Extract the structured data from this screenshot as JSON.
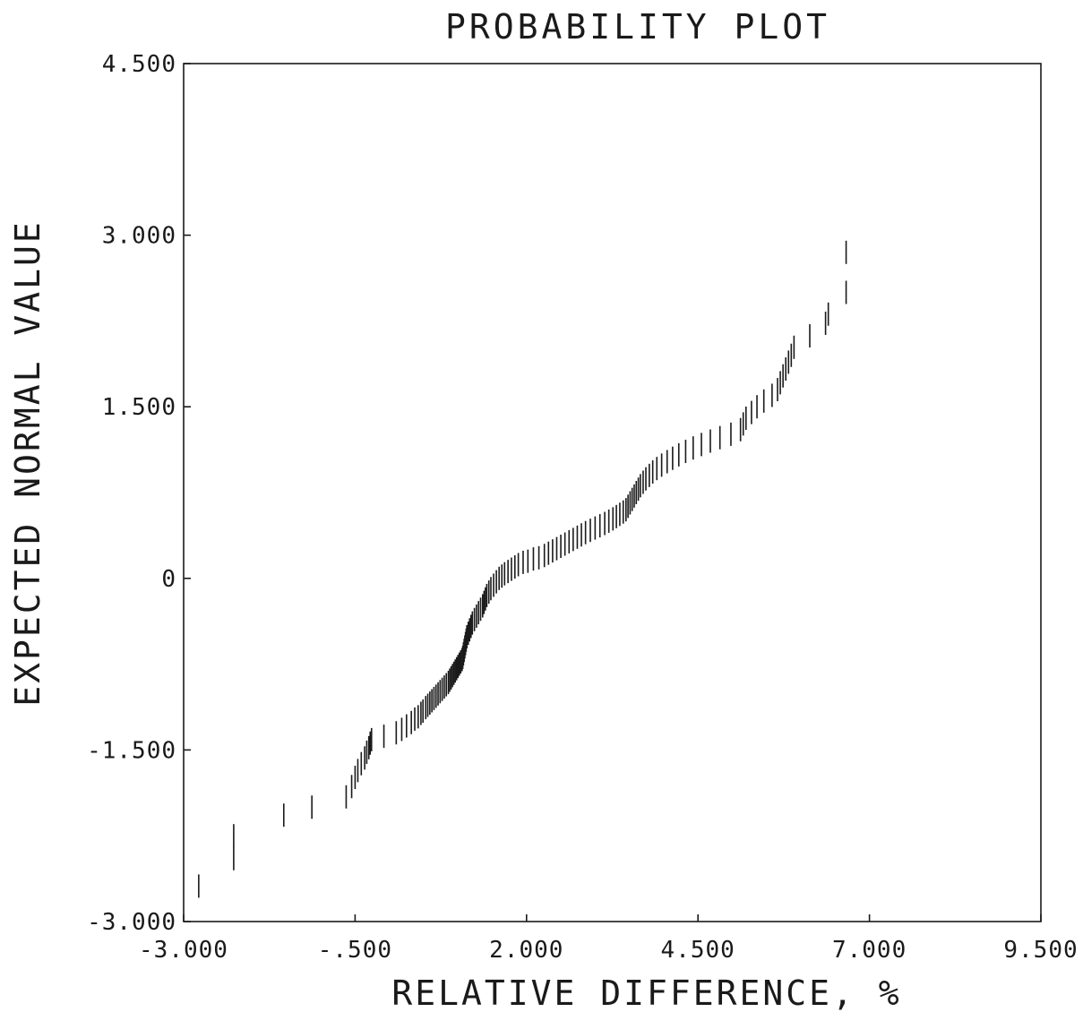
{
  "chart_data": {
    "type": "scatter",
    "title": "PROBABILITY PLOT",
    "xlabel": "RELATIVE DIFFERENCE, %",
    "ylabel": "EXPECTED NORMAL VALUE",
    "xlim": [
      -3.0,
      9.5
    ],
    "ylim": [
      -3.0,
      4.5
    ],
    "x_ticks": [
      -3.0,
      -0.5,
      2.0,
      4.5,
      7.0,
      9.5
    ],
    "x_tick_labels": [
      "-3.000",
      "-.500",
      "2.000",
      "4.500",
      "7.000",
      "9.500"
    ],
    "y_ticks": [
      -3.0,
      -1.5,
      0,
      1.5,
      3.0,
      4.5
    ],
    "y_tick_labels": [
      "-3.000",
      "-1.500",
      "0",
      "1.500",
      "3.000",
      "4.500"
    ],
    "grid": false,
    "legend": "none",
    "marker": "vertical-bar",
    "series": [
      {
        "points": [
          [
            -2.78,
            -2.69
          ],
          [
            -2.27,
            -2.45
          ],
          [
            -2.27,
            -2.25
          ],
          [
            -1.54,
            -2.07
          ],
          [
            -1.13,
            -2.0
          ],
          [
            -0.63,
            -1.91
          ],
          [
            -0.55,
            -1.82
          ],
          [
            -0.5,
            -1.74
          ],
          [
            -0.46,
            -1.68
          ],
          [
            -0.41,
            -1.62
          ],
          [
            -0.36,
            -1.57
          ],
          [
            -0.33,
            -1.52
          ],
          [
            -0.3,
            -1.48
          ],
          [
            -0.28,
            -1.44
          ],
          [
            -0.26,
            -1.41
          ],
          [
            -0.08,
            -1.38
          ],
          [
            0.1,
            -1.35
          ],
          [
            0.18,
            -1.32
          ],
          [
            0.25,
            -1.29
          ],
          [
            0.32,
            -1.26
          ],
          [
            0.37,
            -1.23
          ],
          [
            0.42,
            -1.21
          ],
          [
            0.46,
            -1.18
          ],
          [
            0.49,
            -1.16
          ],
          [
            0.53,
            -1.13
          ],
          [
            0.56,
            -1.11
          ],
          [
            0.59,
            -1.09
          ],
          [
            0.62,
            -1.07
          ],
          [
            0.65,
            -1.05
          ],
          [
            0.68,
            -1.03
          ],
          [
            0.71,
            -1.01
          ],
          [
            0.74,
            -0.99
          ],
          [
            0.77,
            -0.97
          ],
          [
            0.8,
            -0.95
          ],
          [
            0.83,
            -0.93
          ],
          [
            0.86,
            -0.91
          ],
          [
            0.88,
            -0.89
          ],
          [
            0.9,
            -0.87
          ],
          [
            0.92,
            -0.85
          ],
          [
            0.94,
            -0.83
          ],
          [
            0.96,
            -0.81
          ],
          [
            0.98,
            -0.79
          ],
          [
            1.0,
            -0.77
          ],
          [
            1.02,
            -0.75
          ],
          [
            1.04,
            -0.73
          ],
          [
            1.06,
            -0.71
          ],
          [
            1.07,
            -0.69
          ],
          [
            1.08,
            -0.66
          ],
          [
            1.09,
            -0.63
          ],
          [
            1.1,
            -0.6
          ],
          [
            1.11,
            -0.57
          ],
          [
            1.12,
            -0.54
          ],
          [
            1.13,
            -0.51
          ],
          [
            1.15,
            -0.48
          ],
          [
            1.17,
            -0.45
          ],
          [
            1.19,
            -0.42
          ],
          [
            1.21,
            -0.39
          ],
          [
            1.24,
            -0.36
          ],
          [
            1.27,
            -0.33
          ],
          [
            1.3,
            -0.3
          ],
          [
            1.33,
            -0.27
          ],
          [
            1.36,
            -0.24
          ],
          [
            1.38,
            -0.21
          ],
          [
            1.4,
            -0.18
          ],
          [
            1.42,
            -0.15
          ],
          [
            1.45,
            -0.12
          ],
          [
            1.48,
            -0.09
          ],
          [
            1.52,
            -0.06
          ],
          [
            1.56,
            -0.03
          ],
          [
            1.6,
            0.0
          ],
          [
            1.64,
            0.02
          ],
          [
            1.68,
            0.04
          ],
          [
            1.73,
            0.06
          ],
          [
            1.78,
            0.08
          ],
          [
            1.83,
            0.1
          ],
          [
            1.88,
            0.12
          ],
          [
            1.95,
            0.14
          ],
          [
            2.02,
            0.15
          ],
          [
            2.1,
            0.17
          ],
          [
            2.18,
            0.18
          ],
          [
            2.26,
            0.2
          ],
          [
            2.32,
            0.22
          ],
          [
            2.38,
            0.24
          ],
          [
            2.44,
            0.26
          ],
          [
            2.5,
            0.28
          ],
          [
            2.56,
            0.3
          ],
          [
            2.62,
            0.32
          ],
          [
            2.68,
            0.34
          ],
          [
            2.74,
            0.36
          ],
          [
            2.8,
            0.38
          ],
          [
            2.86,
            0.4
          ],
          [
            2.93,
            0.42
          ],
          [
            3.0,
            0.44
          ],
          [
            3.07,
            0.46
          ],
          [
            3.14,
            0.48
          ],
          [
            3.2,
            0.5
          ],
          [
            3.26,
            0.52
          ],
          [
            3.31,
            0.54
          ],
          [
            3.36,
            0.56
          ],
          [
            3.41,
            0.58
          ],
          [
            3.45,
            0.6
          ],
          [
            3.48,
            0.63
          ],
          [
            3.51,
            0.66
          ],
          [
            3.54,
            0.69
          ],
          [
            3.57,
            0.72
          ],
          [
            3.6,
            0.75
          ],
          [
            3.63,
            0.78
          ],
          [
            3.66,
            0.81
          ],
          [
            3.7,
            0.84
          ],
          [
            3.74,
            0.87
          ],
          [
            3.79,
            0.9
          ],
          [
            3.84,
            0.93
          ],
          [
            3.9,
            0.96
          ],
          [
            3.97,
            0.99
          ],
          [
            4.05,
            1.02
          ],
          [
            4.13,
            1.05
          ],
          [
            4.22,
            1.08
          ],
          [
            4.32,
            1.11
          ],
          [
            4.43,
            1.14
          ],
          [
            4.55,
            1.17
          ],
          [
            4.68,
            1.2
          ],
          [
            4.82,
            1.23
          ],
          [
            4.98,
            1.26
          ],
          [
            5.12,
            1.3
          ],
          [
            5.16,
            1.35
          ],
          [
            5.2,
            1.4
          ],
          [
            5.28,
            1.45
          ],
          [
            5.36,
            1.5
          ],
          [
            5.46,
            1.55
          ],
          [
            5.58,
            1.6
          ],
          [
            5.66,
            1.65
          ],
          [
            5.7,
            1.71
          ],
          [
            5.74,
            1.77
          ],
          [
            5.78,
            1.83
          ],
          [
            5.82,
            1.89
          ],
          [
            5.86,
            1.95
          ],
          [
            5.9,
            2.02
          ],
          [
            6.13,
            2.12
          ],
          [
            6.36,
            2.23
          ],
          [
            6.4,
            2.31
          ],
          [
            6.66,
            2.5
          ],
          [
            6.66,
            2.85
          ]
        ]
      }
    ]
  }
}
